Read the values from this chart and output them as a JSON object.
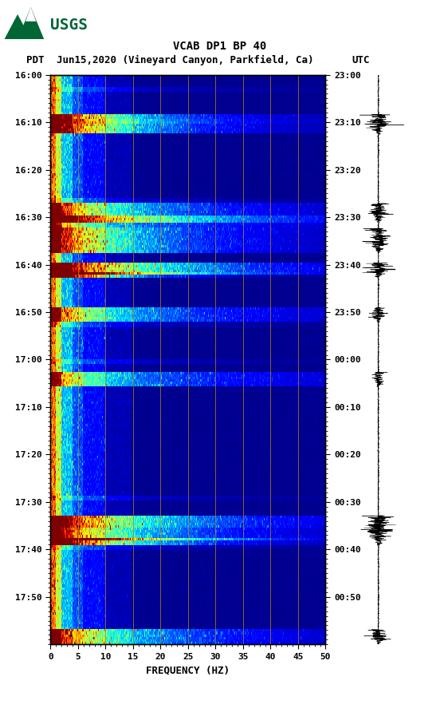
{
  "title_line1": "VCAB DP1 BP 40",
  "title_line2_pdt": "PDT",
  "title_line2_date": "Jun15,2020 (Vineyard Canyon, Parkfield, Ca)",
  "title_line2_utc": "UTC",
  "xlabel": "FREQUENCY (HZ)",
  "freq_ticks": [
    0,
    5,
    10,
    15,
    20,
    25,
    30,
    35,
    40,
    45,
    50
  ],
  "left_time_labels": [
    "16:00",
    "16:10",
    "16:20",
    "16:30",
    "16:40",
    "16:50",
    "17:00",
    "17:10",
    "17:20",
    "17:30",
    "17:40",
    "17:50"
  ],
  "right_time_labels": [
    "23:00",
    "23:10",
    "23:20",
    "23:30",
    "23:40",
    "23:50",
    "00:00",
    "00:10",
    "00:20",
    "00:30",
    "00:40",
    "00:50"
  ],
  "vertical_grid_freqs": [
    5,
    10,
    15,
    20,
    25,
    30,
    35,
    40,
    45
  ],
  "grid_color": "#b8860b",
  "background_color": "#ffffff",
  "usgs_color": "#006633",
  "fig_width": 5.52,
  "fig_height": 8.92,
  "dpi": 100
}
